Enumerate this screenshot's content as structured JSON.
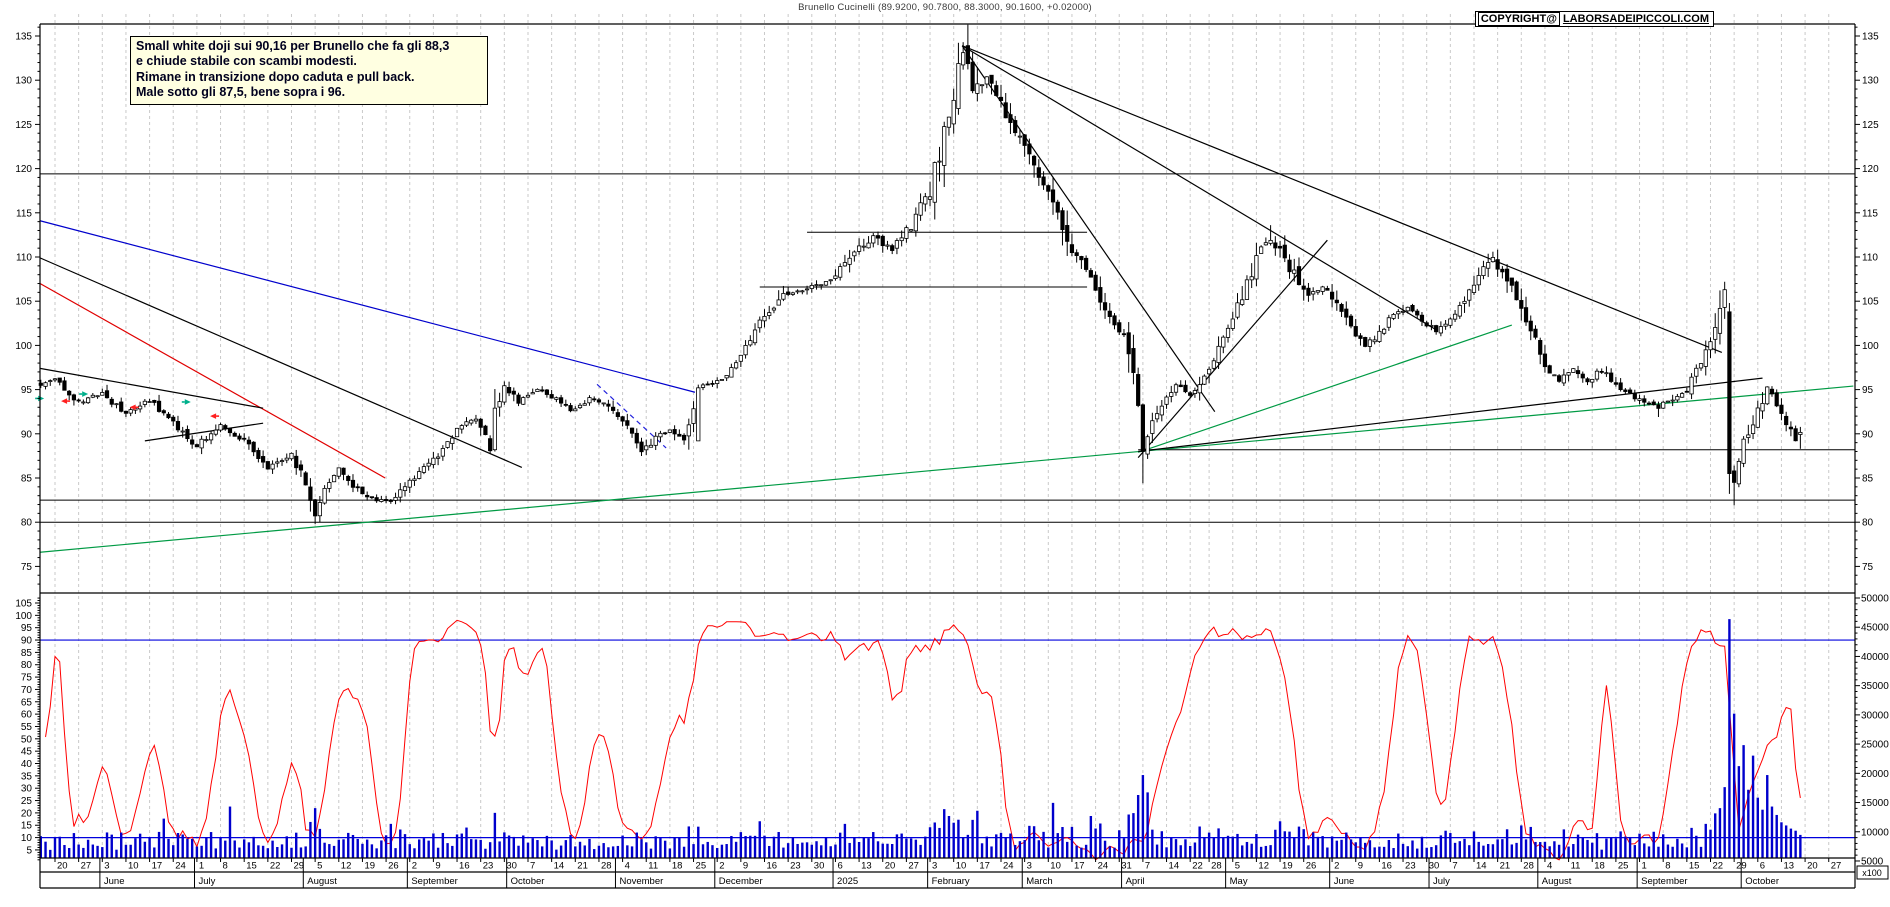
{
  "header": {
    "copyright_label": "COPYRIGHT@",
    "copyright_site": "LABORSADEIPICCOLI.COM"
  },
  "annotation": {
    "line1": "Small white doji sui 90,16 per Brunello che fa gli 88,3",
    "line2": "e chiude stabile con scambi modesti.",
    "line3": "Rimane in transizione dopo caduta e pull back.",
    "line4": "Male sotto gli 87,5, bene sopra i 96."
  },
  "chart_data": {
    "type": "candlestick",
    "title": "Brunello Cucinelli (89.9200, 90.7800, 88.3000, 90.1600, +0.02000)",
    "instrument": "Brunello Cucinelli",
    "last_quote": {
      "open": 89.92,
      "high": 90.78,
      "low": 88.3,
      "close": 90.16,
      "change": "+0.02000"
    },
    "price_axis": {
      "min": 75,
      "max": 135,
      "ticks": [
        75,
        80,
        85,
        90,
        95,
        100,
        105,
        110,
        115,
        120,
        125,
        130,
        135
      ]
    },
    "oscillator_axis": {
      "min": 5,
      "max": 105,
      "ticks": [
        5,
        10,
        15,
        20,
        25,
        30,
        35,
        40,
        45,
        50,
        55,
        60,
        65,
        70,
        75,
        80,
        85,
        90,
        95,
        100,
        105
      ],
      "bands": [
        90,
        10
      ]
    },
    "volume_axis": {
      "ticks": [
        5000,
        10000,
        15000,
        20000,
        25000,
        30000,
        35000,
        40000,
        45000,
        50000
      ],
      "multiplier_label": "x100"
    },
    "x_axis": {
      "weeks": [
        [
          "20",
          3
        ],
        [
          "27",
          8
        ],
        [
          "3",
          13
        ],
        [
          "10",
          18
        ],
        [
          "17",
          23
        ],
        [
          "24",
          28
        ],
        [
          "1",
          33
        ],
        [
          "8",
          38
        ],
        [
          "15",
          43
        ],
        [
          "22",
          48
        ],
        [
          "29",
          53
        ],
        [
          "5",
          58
        ],
        [
          "12",
          63
        ],
        [
          "19",
          68
        ],
        [
          "26",
          73
        ],
        [
          "2",
          78
        ],
        [
          "9",
          83
        ],
        [
          "16",
          88
        ],
        [
          "23",
          93
        ],
        [
          "30",
          98
        ],
        [
          "7",
          103
        ],
        [
          "14",
          108
        ],
        [
          "21",
          113
        ],
        [
          "28",
          118
        ],
        [
          "4",
          123
        ],
        [
          "11",
          128
        ],
        [
          "18",
          133
        ],
        [
          "25",
          138
        ],
        [
          "2",
          143
        ],
        [
          "9",
          148
        ],
        [
          "16",
          153
        ],
        [
          "23",
          158
        ],
        [
          "30",
          163
        ],
        [
          "6",
          168
        ],
        [
          "13",
          173
        ],
        [
          "20",
          178
        ],
        [
          "27",
          183
        ],
        [
          "3",
          188
        ],
        [
          "10",
          193
        ],
        [
          "17",
          198
        ],
        [
          "24",
          203
        ],
        [
          "3",
          208
        ],
        [
          "10",
          213
        ],
        [
          "17",
          218
        ],
        [
          "24",
          223
        ],
        [
          "31",
          228
        ],
        [
          "7",
          233
        ],
        [
          "14",
          238
        ],
        [
          "22",
          243
        ],
        [
          "28",
          247
        ],
        [
          "5",
          252
        ],
        [
          "12",
          257
        ],
        [
          "19",
          262
        ],
        [
          "26",
          267
        ],
        [
          "2",
          273
        ],
        [
          "9",
          278
        ],
        [
          "16",
          283
        ],
        [
          "23",
          288
        ],
        [
          "30",
          293
        ],
        [
          "7",
          298
        ],
        [
          "14",
          303
        ],
        [
          "21",
          308
        ],
        [
          "28",
          313
        ],
        [
          "4",
          318
        ],
        [
          "11",
          323
        ],
        [
          "18",
          328
        ],
        [
          "25",
          333
        ],
        [
          "1",
          338
        ],
        [
          "8",
          343
        ],
        [
          "15",
          348
        ],
        [
          "22",
          353
        ],
        [
          "29",
          358
        ],
        [
          "6",
          363
        ],
        [
          "13",
          368
        ],
        [
          "20",
          373
        ],
        [
          "27",
          378
        ]
      ],
      "months": [
        [
          "June",
          13
        ],
        [
          "July",
          33
        ],
        [
          "August",
          56
        ],
        [
          "September",
          78
        ],
        [
          "October",
          99
        ],
        [
          "November",
          122
        ],
        [
          "December",
          143
        ],
        [
          "2025",
          168
        ],
        [
          "February",
          188
        ],
        [
          "March",
          208
        ],
        [
          "April",
          229
        ],
        [
          "May",
          251
        ],
        [
          "June",
          273
        ],
        [
          "July",
          294
        ],
        [
          "August",
          317
        ],
        [
          "September",
          338
        ],
        [
          "October",
          360
        ]
      ]
    },
    "close_anchors": [
      [
        0,
        95.5
      ],
      [
        3,
        96.3
      ],
      [
        8,
        93.6
      ],
      [
        13,
        94.6
      ],
      [
        18,
        92.2
      ],
      [
        23,
        93.8
      ],
      [
        28,
        91.2
      ],
      [
        33,
        88.6
      ],
      [
        38,
        91.0
      ],
      [
        43,
        89.2
      ],
      [
        48,
        86.2
      ],
      [
        53,
        87.6
      ],
      [
        56,
        84.5
      ],
      [
        58,
        80.6
      ],
      [
        60,
        84.0
      ],
      [
        63,
        86.0
      ],
      [
        66,
        84.2
      ],
      [
        70,
        82.6
      ],
      [
        74,
        82.2
      ],
      [
        78,
        84.5
      ],
      [
        83,
        87.0
      ],
      [
        88,
        90.5
      ],
      [
        92,
        91.8
      ],
      [
        95,
        88.3
      ],
      [
        96,
        92.8
      ],
      [
        98,
        95.6
      ],
      [
        101,
        93.6
      ],
      [
        105,
        95.0
      ],
      [
        108,
        94.2
      ],
      [
        112,
        92.6
      ],
      [
        116,
        94.0
      ],
      [
        120,
        93.2
      ],
      [
        124,
        90.6
      ],
      [
        127,
        87.9
      ],
      [
        130,
        89.5
      ],
      [
        133,
        90.6
      ],
      [
        136,
        89.0
      ],
      [
        139,
        95.2
      ],
      [
        143,
        96.0
      ],
      [
        147,
        97.8
      ],
      [
        152,
        102.5
      ],
      [
        157,
        105.8
      ],
      [
        162,
        106.3
      ],
      [
        167,
        107.6
      ],
      [
        172,
        110.6
      ],
      [
        176,
        112.4
      ],
      [
        180,
        110.8
      ],
      [
        184,
        113.5
      ],
      [
        188,
        117.5
      ],
      [
        191,
        124.0
      ],
      [
        193,
        128.0
      ],
      [
        195,
        133.3
      ],
      [
        197,
        128.8
      ],
      [
        200,
        130.3
      ],
      [
        203,
        127.2
      ],
      [
        206,
        124.5
      ],
      [
        210,
        120.5
      ],
      [
        214,
        116.0
      ],
      [
        218,
        110.5
      ],
      [
        222,
        108.0
      ],
      [
        226,
        103.0
      ],
      [
        229,
        101.0
      ],
      [
        231,
        96.0
      ],
      [
        233,
        88.5
      ],
      [
        235,
        91.5
      ],
      [
        237,
        93.5
      ],
      [
        240,
        95.5
      ],
      [
        243,
        94.2
      ],
      [
        246,
        96.5
      ],
      [
        249,
        99.5
      ],
      [
        252,
        103.0
      ],
      [
        255,
        107.0
      ],
      [
        257,
        110.0
      ],
      [
        260,
        112.0
      ],
      [
        262,
        110.5
      ],
      [
        265,
        108.0
      ],
      [
        268,
        105.5
      ],
      [
        271,
        106.5
      ],
      [
        274,
        105.0
      ],
      [
        277,
        102.0
      ],
      [
        280,
        99.8
      ],
      [
        283,
        101.5
      ],
      [
        286,
        103.5
      ],
      [
        289,
        104.5
      ],
      [
        292,
        103.0
      ],
      [
        295,
        101.5
      ],
      [
        298,
        103.0
      ],
      [
        301,
        105.5
      ],
      [
        304,
        108.0
      ],
      [
        307,
        109.8
      ],
      [
        310,
        107.5
      ],
      [
        313,
        104.5
      ],
      [
        316,
        100.5
      ],
      [
        318,
        97.5
      ],
      [
        321,
        96.0
      ],
      [
        324,
        97.5
      ],
      [
        327,
        96.0
      ],
      [
        330,
        97.2
      ],
      [
        333,
        95.5
      ],
      [
        336,
        94.5
      ],
      [
        339,
        93.5
      ],
      [
        342,
        93.0
      ],
      [
        345,
        94.0
      ],
      [
        348,
        95.0
      ],
      [
        350,
        97.0
      ],
      [
        352,
        99.0
      ],
      [
        354,
        102.5
      ],
      [
        355,
        104.5
      ],
      [
        356,
        106.3
      ],
      [
        357,
        85.5
      ],
      [
        358,
        84.5
      ],
      [
        359,
        87.5
      ],
      [
        361,
        90.2
      ],
      [
        363,
        92.6
      ],
      [
        365,
        95.2
      ],
      [
        367,
        93.2
      ],
      [
        369,
        91.2
      ],
      [
        371,
        89.2
      ],
      [
        372,
        90.16
      ]
    ],
    "candle_overrides": {
      "58": {
        "l": 79.8
      },
      "96": {
        "o": 88.2,
        "c": 92.9
      },
      "139": {
        "o": 89.2,
        "c": 95.2
      },
      "195": {
        "h": 134.3
      },
      "198": {
        "h": 131.5
      },
      "233": {
        "l": 84.4
      },
      "257": {
        "h": 111.6
      },
      "260": {
        "h": 113.6
      },
      "307": {
        "h": 110.6
      },
      "342": {
        "l": 91.9
      },
      "356": {
        "o": 104.3,
        "h": 107.2,
        "l": 103.0,
        "c": 106.3
      },
      "357": {
        "o": 103.8,
        "h": 104.8,
        "l": 83.2,
        "c": 85.5
      },
      "358": {
        "o": 85.8,
        "h": 86.4,
        "l": 81.9,
        "c": 84.5
      },
      "372": {
        "o": 89.92,
        "h": 90.78,
        "l": 88.3,
        "c": 90.16
      }
    },
    "volume_spikes": {
      "26": 7500,
      "40": 9800,
      "58": 9500,
      "74": 6500,
      "90": 5800,
      "96": 8600,
      "152": 7000,
      "170": 6500,
      "192": 8000,
      "198": 9000,
      "214": 10500,
      "222": 8000,
      "232": 12000,
      "233": 15800,
      "234": 12500,
      "245": 6000,
      "262": 7000,
      "297": 5200,
      "313": 6200,
      "341": 5000,
      "352": 6500,
      "354": 8500,
      "355": 9500,
      "356": 13500,
      "357": 45500,
      "358": 27500,
      "359": 17500,
      "360": 21500,
      "361": 13000,
      "362": 19500,
      "363": 11500,
      "364": 9200,
      "365": 15800,
      "366": 9800,
      "367": 8200,
      "368": 6800,
      "369": 6200,
      "370": 5600,
      "371": 5200,
      "372": 4400
    },
    "oscillator": {
      "type": "stochastic",
      "period": 11,
      "smooth": 3
    },
    "trendlines": [
      {
        "name": "blue-resistance",
        "color": "#0000cc",
        "dash": false,
        "i1": -0.8,
        "p1": 114.1,
        "i2": 138.3,
        "p2": 94.7
      },
      {
        "name": "blue-dashed-break",
        "color": "#2222dd",
        "dash": true,
        "i1": 117.6,
        "p1": 95.6,
        "i2": 132.2,
        "p2": 88.4
      },
      {
        "name": "black-descending",
        "color": "#000000",
        "dash": false,
        "i1": -0.8,
        "p1": 109.9,
        "i2": 101.7,
        "p2": 86.2
      },
      {
        "name": "red-descending",
        "color": "#e00000",
        "dash": false,
        "i1": -0.8,
        "p1": 107.0,
        "i2": 72.8,
        "p2": 85.0
      },
      {
        "name": "pennant-top",
        "color": "#000000",
        "dash": false,
        "i1": -0.8,
        "p1": 97.4,
        "i2": 47,
        "p2": 92.9
      },
      {
        "name": "pennant-bottom",
        "color": "#000000",
        "dash": false,
        "i1": 22,
        "p1": 89.2,
        "i2": 47,
        "p2": 91.2
      },
      {
        "name": "green-longterm-support",
        "color": "#009a44",
        "dash": false,
        "i1": -0.2,
        "p1": 76.6,
        "i2": 383.2,
        "p2": 95.4
      },
      {
        "name": "green-recovery",
        "color": "#009a44",
        "dash": false,
        "i1": 232,
        "p1": 87.9,
        "i2": 311,
        "p2": 102.3
      },
      {
        "name": "black-steep-ascending",
        "color": "#000000",
        "dash": false,
        "i1": 232,
        "p1": 87.3,
        "i2": 272,
        "p2": 111.9
      },
      {
        "name": "wedge-support",
        "color": "#000000",
        "dash": false,
        "i1": 232,
        "p1": 88.0,
        "i2": 364,
        "p2": 96.3
      },
      {
        "name": "fan-from-top-a",
        "color": "#000000",
        "dash": false,
        "i1": 194.8,
        "p1": 133.9,
        "i2": 355.4,
        "p2": 99.2
      },
      {
        "name": "fan-from-top-b",
        "color": "#000000",
        "dash": false,
        "i1": 194.8,
        "p1": 133.9,
        "i2": 295.2,
        "p2": 101.7
      },
      {
        "name": "fan-from-top-c",
        "color": "#000000",
        "dash": false,
        "i1": 194.8,
        "p1": 133.9,
        "i2": 248.2,
        "p2": 92.5
      }
    ],
    "hlines": [
      {
        "p": 119.4,
        "i1": -0.2,
        "i2": 383.6
      },
      {
        "p": 82.5,
        "i1": -0.2,
        "i2": 383.6
      },
      {
        "p": 80.0,
        "i1": -0.2,
        "i2": 383.6
      },
      {
        "p": 112.8,
        "i1": 162,
        "i2": 221.2
      },
      {
        "p": 106.6,
        "i1": 152,
        "i2": 221.2
      },
      {
        "p": 88.2,
        "i1": 232,
        "i2": 383.6
      }
    ],
    "arrows": [
      {
        "i": 0.5,
        "p": 94.0,
        "type": "buy"
      },
      {
        "i": 4.5,
        "p": 93.7,
        "type": "sell"
      },
      {
        "i": 9.8,
        "p": 94.5,
        "type": "buy"
      },
      {
        "i": 19,
        "p": 93.0,
        "type": "sell"
      },
      {
        "i": 31.5,
        "p": 93.6,
        "type": "buy"
      },
      {
        "i": 36,
        "p": 92.0,
        "type": "sell"
      }
    ],
    "colors": {
      "up_candle": "#ffffff",
      "down_candle": "#000000",
      "wick": "#000000",
      "volume": "#0000cc",
      "oscillator": "#ff0000",
      "band": "#0000dd",
      "grid": "#c9c9c9",
      "frame": "#000000",
      "buy_arrow": "#00b08c",
      "sell_arrow": "#ff2020"
    }
  }
}
